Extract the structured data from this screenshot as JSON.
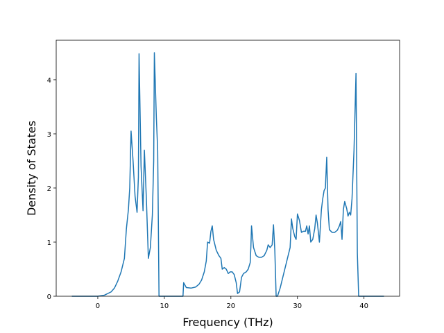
{
  "chart_data": {
    "type": "line",
    "x_label": "Frequency (THz)",
    "y_label": "Density of States",
    "xlim": [
      -6.25,
      45.35
    ],
    "ylim": [
      0,
      4.73
    ],
    "xticks": [
      0,
      10,
      20,
      30,
      40
    ],
    "yticks": [
      0,
      1,
      2,
      3,
      4
    ],
    "series": [
      {
        "color": "#1f77b4",
        "x": [
          -3.9,
          -2,
          0,
          1,
          2,
          2.5,
          3,
          3.5,
          4,
          4.3,
          4.6,
          4.8,
          5,
          5.3,
          5.6,
          5.9,
          6.1,
          6.2,
          6.5,
          6.8,
          7,
          7.3,
          7.6,
          7.9,
          8.2,
          8.4,
          8.5,
          8.8,
          9.0,
          9.2,
          10,
          12,
          12.8,
          12.9,
          13.3,
          14,
          14.7,
          15.2,
          15.6,
          16,
          16.3,
          16.5,
          16.8,
          17,
          17.2,
          17.4,
          17.8,
          18.2,
          18.5,
          18.7,
          19,
          19.3,
          19.6,
          19.9,
          20.2,
          20.5,
          20.8,
          21,
          21.3,
          21.6,
          21.9,
          22.3,
          22.6,
          22.9,
          23,
          23.1,
          23.4,
          23.8,
          24.2,
          24.6,
          25,
          25.4,
          25.6,
          25.9,
          26.2,
          26.4,
          26.6,
          26.8,
          27,
          27.4,
          27.8,
          28.2,
          28.6,
          28.9,
          29.1,
          29.3,
          29.6,
          29.8,
          30,
          30.3,
          30.6,
          30.9,
          31.2,
          31.4,
          31.6,
          31.8,
          32,
          32.3,
          32.6,
          32.8,
          33,
          33.3,
          33.6,
          33.8,
          34,
          34.2,
          34.4,
          34.6,
          34.8,
          35.2,
          35.6,
          36,
          36.3,
          36.5,
          36.7,
          36.9,
          37.1,
          37.4,
          37.6,
          37.8,
          38,
          38.2,
          38.5,
          38.8,
          39,
          39.2,
          40,
          43
        ],
        "values": [
          0,
          0,
          0,
          0.02,
          0.08,
          0.15,
          0.28,
          0.45,
          0.7,
          1.25,
          1.6,
          2.0,
          3.05,
          2.5,
          1.85,
          1.55,
          2.2,
          4.48,
          2.4,
          1.58,
          2.7,
          1.8,
          0.7,
          0.9,
          1.5,
          2.5,
          4.5,
          3.3,
          2.7,
          0,
          0,
          0,
          0,
          0.25,
          0.16,
          0.15,
          0.17,
          0.22,
          0.3,
          0.45,
          0.65,
          1.0,
          0.98,
          1.2,
          1.3,
          1.05,
          0.85,
          0.75,
          0.7,
          0.5,
          0.53,
          0.5,
          0.42,
          0.45,
          0.45,
          0.4,
          0.25,
          0.05,
          0.08,
          0.35,
          0.42,
          0.45,
          0.5,
          0.62,
          0.9,
          1.3,
          0.9,
          0.75,
          0.72,
          0.72,
          0.75,
          0.85,
          0.95,
          0.9,
          0.95,
          1.32,
          0.85,
          0,
          0,
          0.15,
          0.35,
          0.55,
          0.75,
          0.9,
          1.43,
          1.25,
          1.1,
          1.05,
          1.52,
          1.4,
          1.18,
          1.2,
          1.2,
          1.3,
          1.15,
          1.3,
          1.0,
          1.05,
          1.25,
          1.5,
          1.35,
          1.0,
          1.6,
          1.8,
          1.95,
          2.0,
          2.57,
          1.6,
          1.23,
          1.18,
          1.18,
          1.22,
          1.3,
          1.38,
          1.05,
          1.6,
          1.75,
          1.62,
          1.48,
          1.55,
          1.5,
          1.8,
          2.7,
          4.12,
          0.8,
          0,
          0,
          0
        ]
      }
    ]
  }
}
